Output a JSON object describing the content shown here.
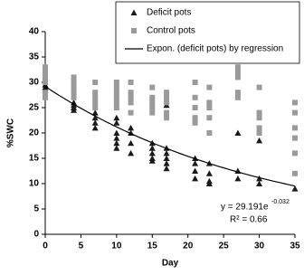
{
  "chart_data": {
    "type": "scatter",
    "x_label": "Day",
    "y_label": "%SWC",
    "xlim": [
      0,
      35
    ],
    "xticks": [
      0,
      5,
      10,
      15,
      20,
      25,
      30,
      35
    ],
    "ylim": [
      0,
      40
    ],
    "yticks": [
      0,
      5,
      10,
      15,
      20,
      25,
      30,
      35,
      40
    ],
    "series": [
      {
        "name": "Deficit pots",
        "color": "#1a1a1a",
        "marker": "triangle",
        "x": [
          0,
          0,
          0,
          4,
          4,
          4,
          4,
          7,
          7,
          7,
          7,
          10,
          10,
          10,
          10,
          10,
          10,
          12,
          12,
          12,
          12,
          15,
          15,
          15,
          15,
          15,
          17,
          17,
          17,
          17,
          17,
          17,
          21,
          21,
          21,
          21,
          23,
          23,
          23,
          23,
          27,
          27,
          27,
          30,
          30,
          30,
          35
        ],
        "values": [
          29,
          28.5,
          29.5,
          26,
          25,
          24.5,
          25.5,
          24,
          22,
          21,
          23,
          23,
          22,
          20,
          19,
          18,
          17,
          21,
          20,
          18,
          16,
          18,
          17,
          16,
          15,
          14.5,
          25.5,
          17,
          16,
          15,
          14,
          13,
          15,
          14,
          12.5,
          11,
          14,
          12,
          10.5,
          10,
          20,
          12.5,
          11,
          18.5,
          11,
          10,
          9
        ]
      },
      {
        "name": "Control pots",
        "color": "#9a9a9a",
        "marker": "square",
        "x": [
          0,
          0,
          0,
          0,
          0,
          0,
          4,
          4,
          4,
          4,
          4,
          7,
          7,
          7,
          7,
          7,
          10,
          10,
          10,
          10,
          10,
          10,
          12,
          12,
          12,
          12,
          12,
          15,
          15,
          15,
          15,
          15,
          17,
          17,
          17,
          17,
          17,
          21,
          21,
          21,
          21,
          21,
          23,
          23,
          23,
          23,
          23,
          27,
          27,
          27,
          27,
          27,
          30,
          30,
          30,
          30,
          30,
          35,
          35,
          35,
          35,
          35,
          35
        ],
        "values": [
          33,
          32,
          31,
          30,
          28,
          27,
          31,
          30,
          29,
          28,
          27,
          30,
          28,
          27,
          26,
          25,
          30,
          29,
          28,
          27,
          26,
          25,
          30,
          28,
          27,
          26,
          24,
          29,
          27,
          26,
          25,
          24,
          28,
          27,
          26,
          24,
          23,
          30,
          27,
          25,
          23,
          22,
          29,
          26,
          25,
          23,
          20,
          33,
          32,
          31,
          28,
          27,
          29,
          24,
          23,
          21,
          20,
          26,
          24,
          21,
          19,
          16,
          12
        ]
      }
    ],
    "trendline": {
      "name": "Expon. (deficit pots) by regression",
      "color": "#000000",
      "coefficient": 29.191,
      "exponent": -0.032
    },
    "annotations": [
      "y = 29.191e",
      "-0.032",
      "R² = 0.66"
    ]
  }
}
